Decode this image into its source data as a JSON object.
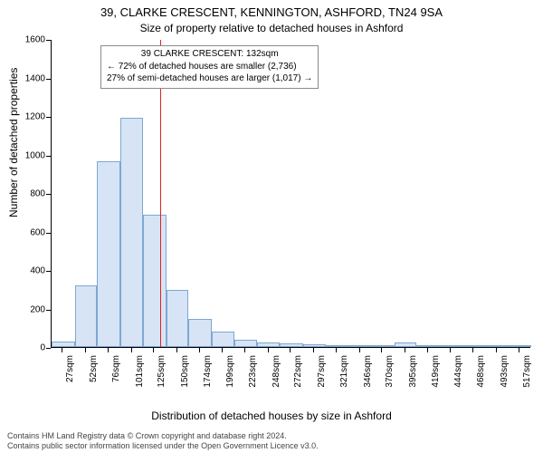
{
  "title": "39, CLARKE CRESCENT, KENNINGTON, ASHFORD, TN24 9SA",
  "subtitle": "Size of property relative to detached houses in Ashford",
  "ylabel": "Number of detached properties",
  "xlabel": "Distribution of detached houses by size in Ashford",
  "footer_line1": "Contains HM Land Registry data © Crown copyright and database right 2024.",
  "footer_line2": "Contains public sector information licensed under the Open Government Licence v3.0.",
  "annotation": {
    "line1": "39 CLARKE CRESCENT: 132sqm",
    "line2": "← 72% of detached houses are smaller (2,736)",
    "line3": "27% of semi-detached houses are larger (1,017) →"
  },
  "chart": {
    "type": "histogram",
    "background_color": "#ffffff",
    "axis_color": "#000000",
    "bar_fill": "#d6e4f5",
    "bar_stroke": "#7fa7d1",
    "reference_line_color": "#d22",
    "reference_value": 132,
    "annot_border": "#8a8a8a",
    "ylim": [
      0,
      1600
    ],
    "ytick_step": 200,
    "yticks": [
      0,
      200,
      400,
      600,
      800,
      1000,
      1200,
      1400,
      1600
    ],
    "x_range": [
      15,
      530
    ],
    "xticks": [
      27,
      52,
      76,
      101,
      125,
      150,
      174,
      199,
      223,
      248,
      272,
      297,
      321,
      346,
      370,
      395,
      419,
      444,
      468,
      493,
      517
    ],
    "xtick_suffix": "sqm",
    "title_fontsize": 13,
    "subtitle_fontsize": 12,
    "label_fontsize": 12,
    "tick_fontsize": 10,
    "footer_fontsize": 9,
    "annot_fontsize": 10,
    "bars": [
      {
        "x0": 15,
        "x1": 40,
        "y": 30
      },
      {
        "x0": 40,
        "x1": 64,
        "y": 320
      },
      {
        "x0": 64,
        "x1": 89,
        "y": 965
      },
      {
        "x0": 89,
        "x1": 113,
        "y": 1190
      },
      {
        "x0": 113,
        "x1": 138,
        "y": 685
      },
      {
        "x0": 138,
        "x1": 162,
        "y": 295
      },
      {
        "x0": 162,
        "x1": 187,
        "y": 148
      },
      {
        "x0": 187,
        "x1": 211,
        "y": 78
      },
      {
        "x0": 211,
        "x1": 236,
        "y": 40
      },
      {
        "x0": 236,
        "x1": 260,
        "y": 25
      },
      {
        "x0": 260,
        "x1": 285,
        "y": 18
      },
      {
        "x0": 285,
        "x1": 309,
        "y": 14
      },
      {
        "x0": 309,
        "x1": 334,
        "y": 5
      },
      {
        "x0": 334,
        "x1": 358,
        "y": 4
      },
      {
        "x0": 358,
        "x1": 383,
        "y": 3
      },
      {
        "x0": 383,
        "x1": 407,
        "y": 22
      },
      {
        "x0": 407,
        "x1": 432,
        "y": 2
      },
      {
        "x0": 432,
        "x1": 456,
        "y": 3
      },
      {
        "x0": 456,
        "x1": 481,
        "y": 2
      },
      {
        "x0": 481,
        "x1": 505,
        "y": 2
      },
      {
        "x0": 505,
        "x1": 530,
        "y": 2
      }
    ]
  }
}
